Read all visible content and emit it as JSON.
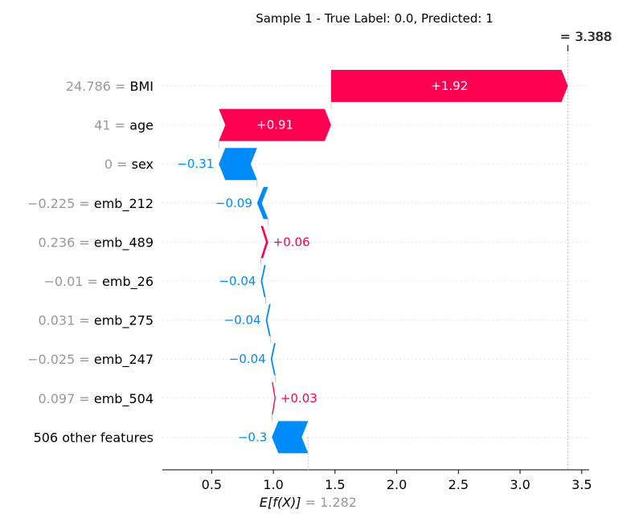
{
  "chart_data": {
    "type": "waterfall",
    "title": "Sample 1 - True Label: 0.0, Predicted: 1",
    "fx_label": "= 3.388",
    "fx_label_ghost": "3.388",
    "fx_value": 3.388,
    "base_value": 1.282,
    "base_label_expr": "E[f(X)]",
    "base_label_value": "= 1.282",
    "xlim": [
      0.1,
      3.56
    ],
    "xticks": [
      {
        "value": 0.5,
        "label": "0.5"
      },
      {
        "value": 1.0,
        "label": "1.0"
      },
      {
        "value": 1.5,
        "label": "1.5"
      },
      {
        "value": 2.0,
        "label": "2.0"
      },
      {
        "value": 2.5,
        "label": "2.5"
      },
      {
        "value": 3.0,
        "label": "3.0"
      },
      {
        "value": 3.5,
        "label": "3.5"
      }
    ],
    "rows": [
      {
        "value_text": "24.786 =",
        "feature": "BMI",
        "label": "+1.92",
        "start": 1.468,
        "end": 3.388
      },
      {
        "value_text": "41 =",
        "feature": "age",
        "label": "+0.91",
        "start": 0.558,
        "end": 1.468
      },
      {
        "value_text": "0 =",
        "feature": "sex",
        "label": "−0.31",
        "start": 0.868,
        "end": 0.558
      },
      {
        "value_text": "−0.225 =",
        "feature": "emb_212",
        "label": "−0.09",
        "start": 0.958,
        "end": 0.868
      },
      {
        "value_text": "0.236 =",
        "feature": "emb_489",
        "label": "+0.06",
        "start": 0.898,
        "end": 0.958
      },
      {
        "value_text": "−0.01 =",
        "feature": "emb_26",
        "label": "−0.04",
        "start": 0.938,
        "end": 0.898
      },
      {
        "value_text": "0.031 =",
        "feature": "emb_275",
        "label": "−0.04",
        "start": 0.978,
        "end": 0.938
      },
      {
        "value_text": "−0.025 =",
        "feature": "emb_247",
        "label": "−0.04",
        "start": 1.018,
        "end": 0.978
      },
      {
        "value_text": "0.097 =",
        "feature": "emb_504",
        "label": "+0.03",
        "start": 0.988,
        "end": 1.018
      },
      {
        "value_text": "",
        "feature": "506 other features",
        "label": "−0.3",
        "start": 1.282,
        "end": 0.988
      }
    ],
    "colors": {
      "positive": "#ff0051",
      "negative": "#008bfb",
      "value_text": "#999999",
      "feature_text": "#000000",
      "gridline": "#e6e6e6",
      "connector": "#bbbbbb"
    }
  }
}
